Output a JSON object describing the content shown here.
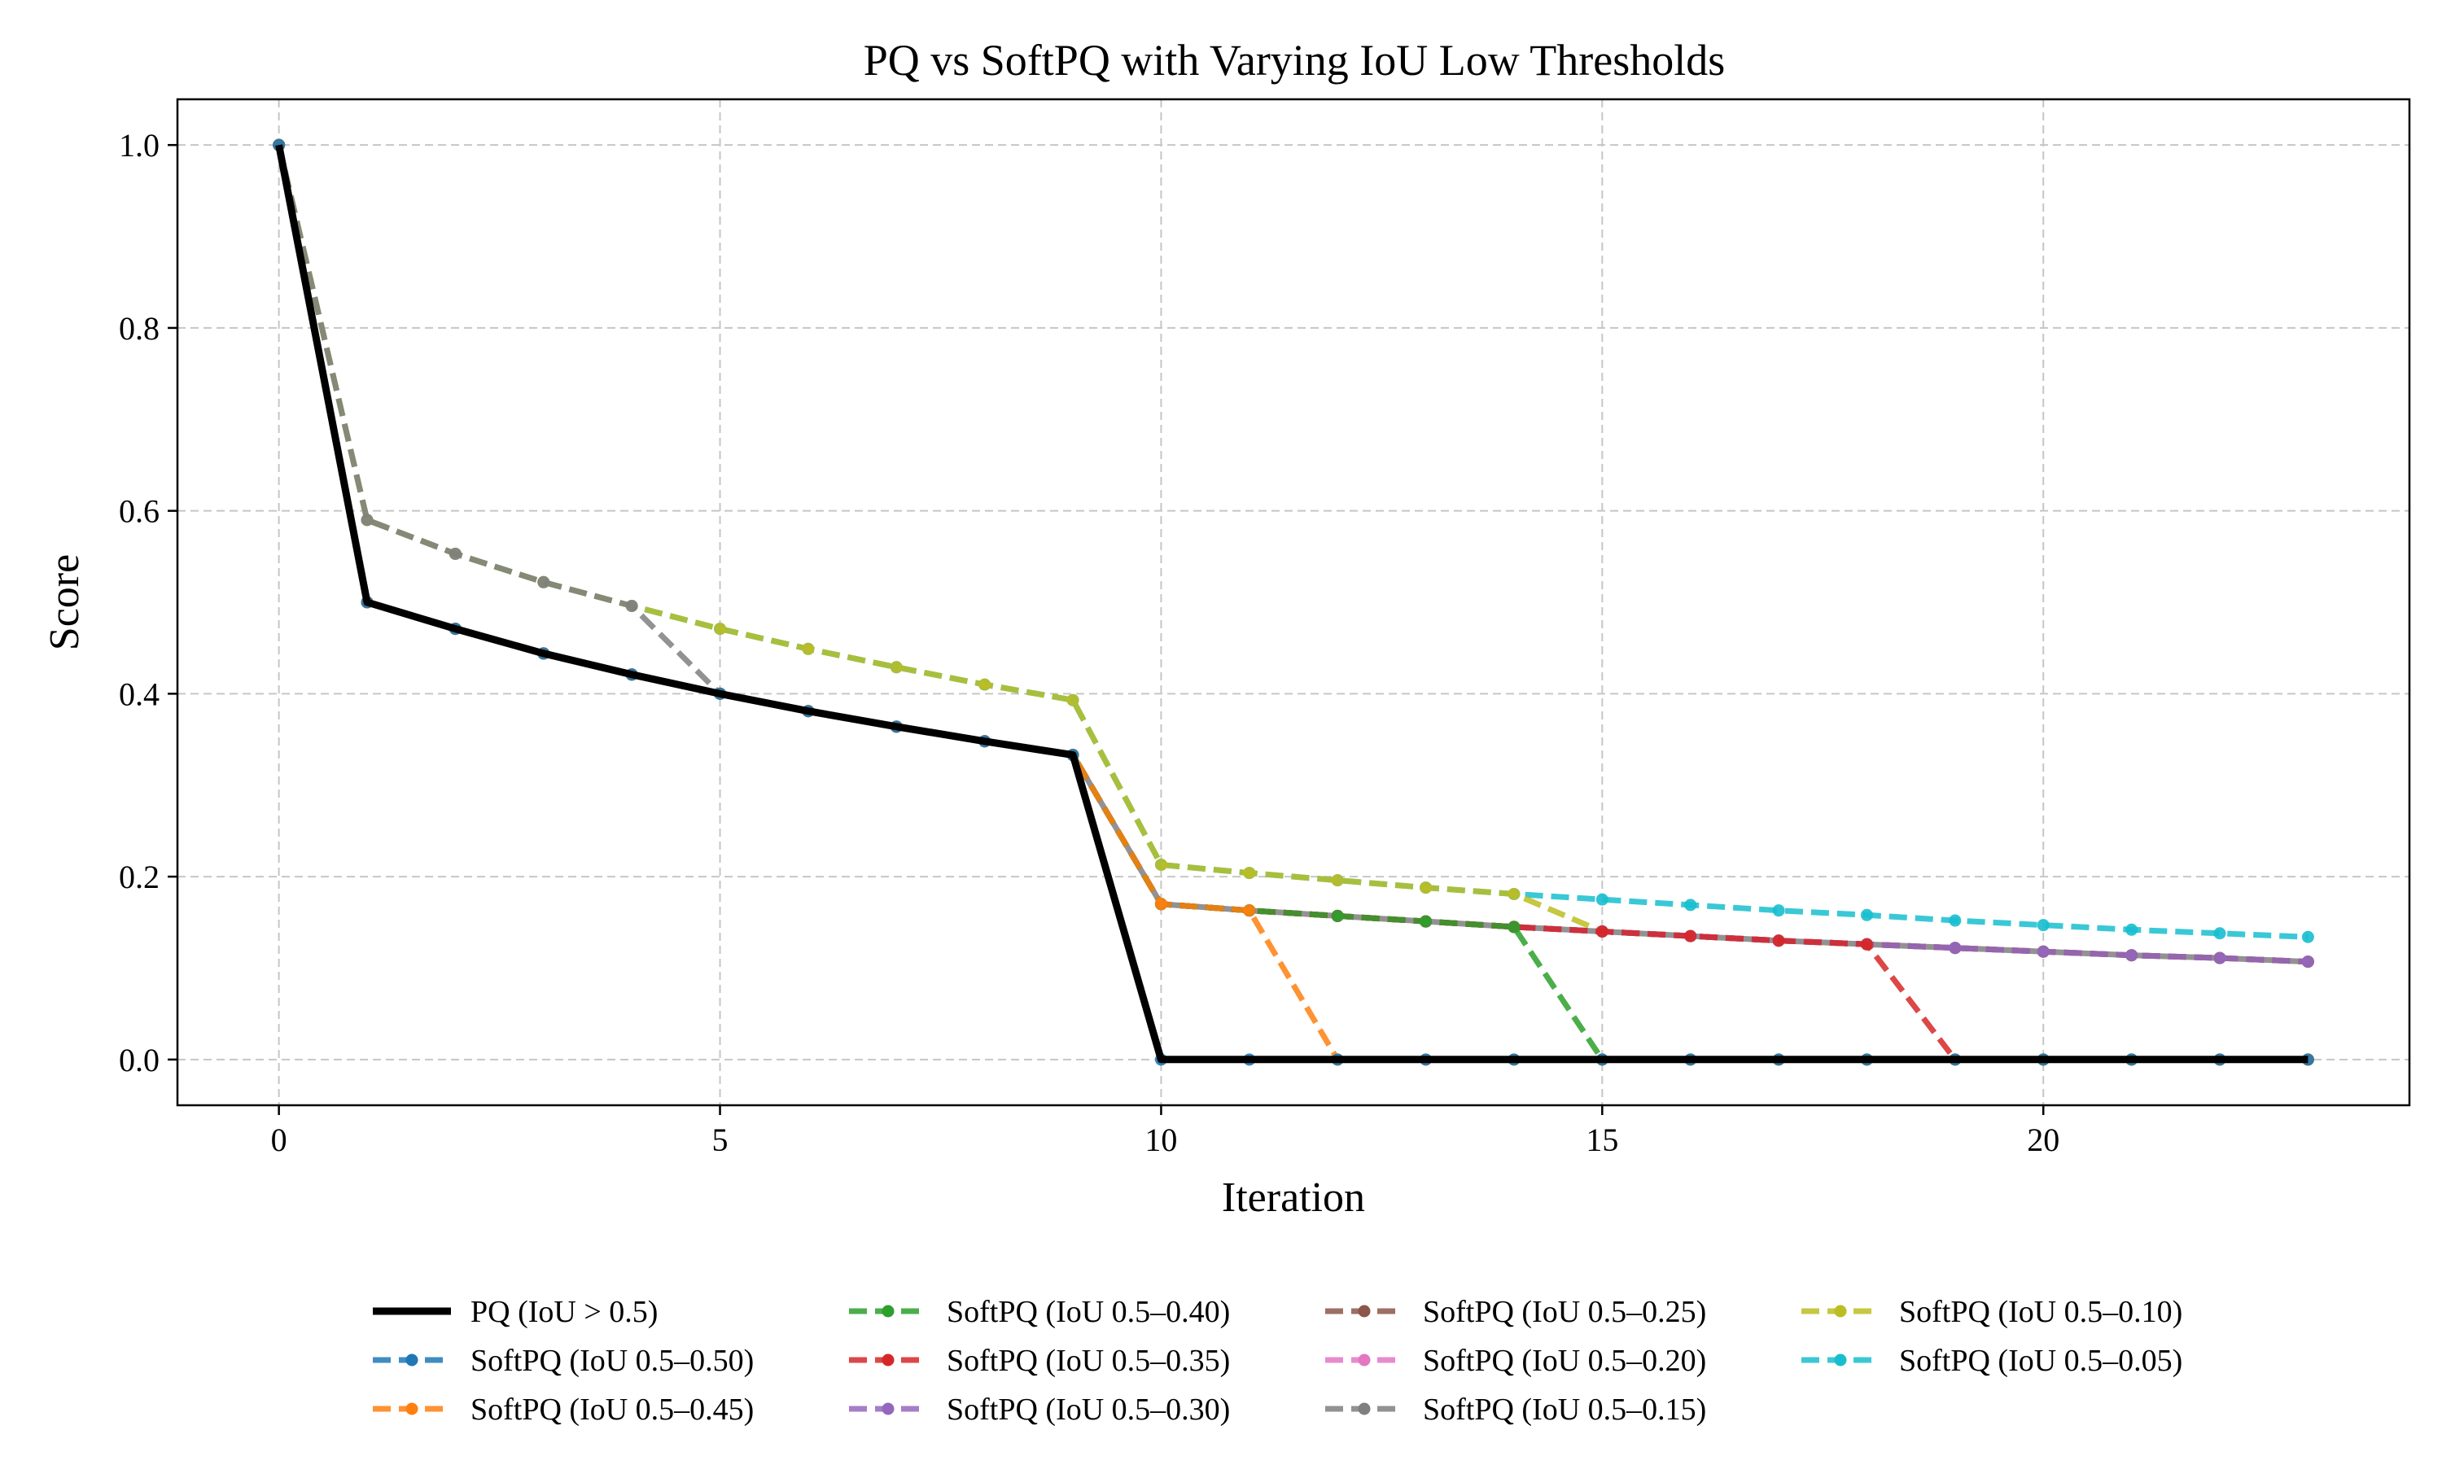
{
  "chart_data": {
    "type": "line",
    "title": "PQ vs SoftPQ with Varying IoU Low Thresholds",
    "xlabel": "Iteration",
    "ylabel": "Score",
    "xlim": [
      -1.15,
      24.15
    ],
    "ylim": [
      -0.05,
      1.05
    ],
    "xticks": [
      0,
      5,
      10,
      15,
      20
    ],
    "yticks": [
      0.0,
      0.2,
      0.4,
      0.6,
      0.8,
      1.0
    ],
    "ytick_labels": [
      "0.0",
      "0.2",
      "0.4",
      "0.6",
      "0.8",
      "1.0"
    ],
    "grid": true,
    "legend_position": "bottom",
    "legend_columns": 4,
    "x": [
      0,
      1,
      2,
      3,
      4,
      5,
      6,
      7,
      8,
      9,
      10,
      11,
      12,
      13,
      14,
      15,
      16,
      17,
      18,
      19,
      20,
      21,
      22,
      23
    ],
    "series": [
      {
        "name": "PQ (IoU > 0.5)",
        "color": "#000000",
        "style": "solid",
        "markers": false,
        "values": [
          1.0,
          0.5,
          0.471,
          0.444,
          0.421,
          0.4,
          0.381,
          0.364,
          0.348,
          0.333,
          0,
          0,
          0,
          0,
          0,
          0,
          0,
          0,
          0,
          0,
          0,
          0,
          0,
          0
        ]
      },
      {
        "name": "SoftPQ (IoU 0.5–0.50)",
        "color": "#1f77b4",
        "style": "dashed",
        "markers": true,
        "values": [
          1.0,
          0.5,
          0.471,
          0.444,
          0.421,
          0.4,
          0.381,
          0.364,
          0.348,
          0.333,
          0,
          0,
          0,
          0,
          0,
          0,
          0,
          0,
          0,
          0,
          0,
          0,
          0,
          0
        ]
      },
      {
        "name": "SoftPQ (IoU 0.5–0.45)",
        "color": "#ff7f0e",
        "style": "dashed",
        "markers": true,
        "values": [
          1.0,
          0.5,
          0.471,
          0.444,
          0.421,
          0.4,
          0.381,
          0.364,
          0.348,
          0.333,
          0.17,
          0.163,
          0,
          0,
          0,
          0,
          0,
          0,
          0,
          0,
          0,
          0,
          0,
          0
        ]
      },
      {
        "name": "SoftPQ (IoU 0.5–0.40)",
        "color": "#2ca02c",
        "style": "dashed",
        "markers": true,
        "values": [
          1.0,
          0.5,
          0.471,
          0.444,
          0.421,
          0.4,
          0.381,
          0.364,
          0.348,
          0.333,
          0.17,
          0.163,
          0.157,
          0.151,
          0.145,
          0,
          0,
          0,
          0,
          0,
          0,
          0,
          0,
          0
        ]
      },
      {
        "name": "SoftPQ (IoU 0.5–0.35)",
        "color": "#d62728",
        "style": "dashed",
        "markers": true,
        "values": [
          1.0,
          0.5,
          0.471,
          0.444,
          0.421,
          0.4,
          0.381,
          0.364,
          0.348,
          0.333,
          0.17,
          0.163,
          0.157,
          0.151,
          0.145,
          0.14,
          0.135,
          0.13,
          0.126,
          0,
          0,
          0,
          0,
          0
        ]
      },
      {
        "name": "SoftPQ (IoU 0.5–0.30)",
        "color": "#9467bd",
        "style": "dashed",
        "markers": true,
        "values": [
          1.0,
          0.5,
          0.471,
          0.444,
          0.421,
          0.4,
          0.381,
          0.364,
          0.348,
          0.333,
          0.17,
          0.163,
          0.157,
          0.151,
          0.145,
          0.14,
          0.135,
          0.13,
          0.126,
          0.122,
          0.118,
          0.114,
          0.111,
          0.107
        ]
      },
      {
        "name": "SoftPQ (IoU 0.5–0.25)",
        "color": "#8c564b",
        "style": "dashed",
        "markers": true,
        "values": [
          1.0,
          0.5,
          0.471,
          0.444,
          0.421,
          0.4,
          0.381,
          0.364,
          0.348,
          0.333,
          0.17,
          0.163,
          0.157,
          0.151,
          0.145,
          0.14,
          0.135,
          0.13,
          0.126,
          0.122,
          0.118,
          0.114,
          0.111,
          0.107
        ]
      },
      {
        "name": "SoftPQ (IoU 0.5–0.20)",
        "color": "#e377c2",
        "style": "dashed",
        "markers": true,
        "values": [
          1.0,
          0.5,
          0.471,
          0.444,
          0.421,
          0.4,
          0.381,
          0.364,
          0.348,
          0.333,
          0.17,
          0.163,
          0.157,
          0.151,
          0.145,
          0.14,
          0.135,
          0.13,
          0.126,
          0.122,
          0.118,
          0.114,
          0.111,
          0.107
        ]
      },
      {
        "name": "SoftPQ (IoU 0.5–0.15)",
        "color": "#7f7f7f",
        "style": "dashed",
        "markers": true,
        "values": [
          1.0,
          0.59,
          0.553,
          0.522,
          0.496,
          0.4,
          0.381,
          0.364,
          0.348,
          0.333,
          0.17,
          0.163,
          0.157,
          0.151,
          0.145,
          0.14,
          0.135,
          0.13,
          0.126,
          0.122,
          0.118,
          0.114,
          0.111,
          0.107
        ]
      },
      {
        "name": "SoftPQ (IoU 0.5–0.10)",
        "color": "#bcbd22",
        "style": "dashed",
        "markers": true,
        "values": [
          1.0,
          0.59,
          0.553,
          0.522,
          0.496,
          0.471,
          0.449,
          0.429,
          0.41,
          0.393,
          0.213,
          0.204,
          0.196,
          0.188,
          0.181,
          0.14,
          0.135,
          0.13,
          0.126,
          0.122,
          0.118,
          0.114,
          0.111,
          0.107
        ]
      },
      {
        "name": "SoftPQ (IoU 0.5–0.05)",
        "color": "#17becf",
        "style": "dashed",
        "markers": true,
        "values": [
          1.0,
          0.59,
          0.553,
          0.522,
          0.496,
          0.471,
          0.449,
          0.429,
          0.41,
          0.393,
          0.213,
          0.204,
          0.196,
          0.188,
          0.181,
          0.175,
          0.169,
          0.163,
          0.158,
          0.152,
          0.147,
          0.142,
          0.138,
          0.134
        ]
      }
    ]
  }
}
